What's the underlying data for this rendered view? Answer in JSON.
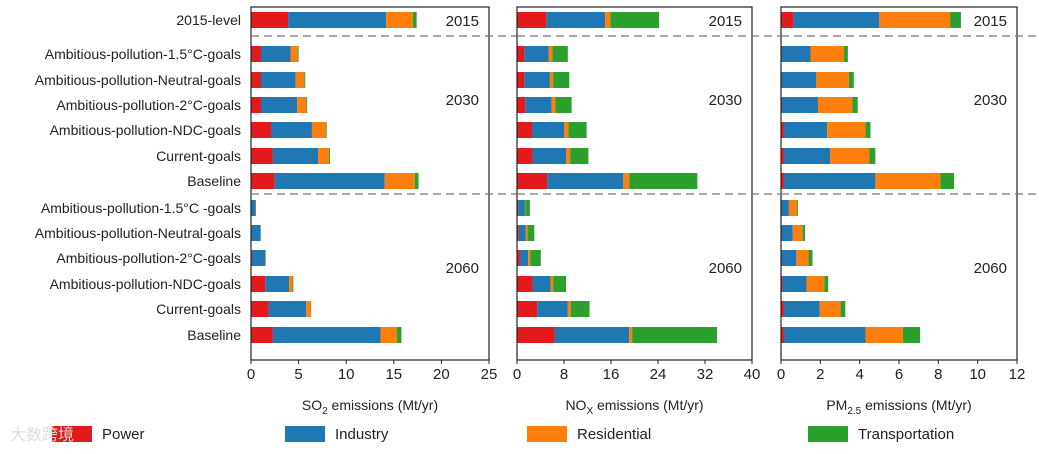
{
  "chart_data": [
    {
      "type": "bar",
      "orientation": "horizontal-stacked",
      "xlabel": {
        "main": "SO",
        "sub": "2",
        "rest": " emissions (Mt/yr)"
      },
      "xlim": [
        0,
        25
      ],
      "xticks": [
        "0",
        "5",
        "10",
        "15",
        "20",
        "25"
      ],
      "tickvals": [
        0,
        5,
        10,
        15,
        20,
        25
      ],
      "series": [
        {
          "name": "Power",
          "values": [
            3.9,
            1.05,
            1.05,
            1.05,
            2.1,
            2.3,
            2.5,
            0.05,
            0.05,
            0.1,
            1.5,
            1.85,
            2.3
          ]
        },
        {
          "name": "Industry",
          "values": [
            10.3,
            3.1,
            3.65,
            3.8,
            4.3,
            4.75,
            11.55,
            0.45,
            0.95,
            1.4,
            2.5,
            3.95,
            11.3
          ]
        },
        {
          "name": "Residential",
          "values": [
            2.8,
            0.75,
            0.9,
            0.95,
            1.45,
            1.15,
            3.15,
            0,
            0,
            0.05,
            0.35,
            0.5,
            1.7
          ]
        },
        {
          "name": "Transportation",
          "values": [
            0.4,
            0.1,
            0.1,
            0.1,
            0.1,
            0.1,
            0.4,
            0.02,
            0.02,
            0.02,
            0.1,
            0.02,
            0.5
          ]
        }
      ]
    },
    {
      "type": "bar",
      "orientation": "horizontal-stacked",
      "xlabel": {
        "main": "NO",
        "sub": "X",
        "rest": " emissions (Mt/yr)"
      },
      "xlim": [
        0,
        40
      ],
      "xticks": [
        "0",
        "8",
        "16",
        "24",
        "32",
        "40"
      ],
      "tickvals": [
        0,
        8,
        16,
        24,
        32,
        40
      ],
      "series": [
        {
          "name": "Power",
          "values": [
            5.0,
            1.25,
            1.25,
            1.4,
            2.55,
            2.65,
            5.15,
            0.2,
            0.3,
            0.5,
            2.65,
            3.45,
            6.4
          ]
        },
        {
          "name": "Industry",
          "values": [
            10.0,
            4.15,
            4.35,
            4.5,
            5.45,
            5.7,
            12.95,
            1.15,
            1.2,
            1.4,
            3.05,
            5.2,
            12.7
          ]
        },
        {
          "name": "Residential",
          "values": [
            0.9,
            0.65,
            0.55,
            0.65,
            0.75,
            0.7,
            1.0,
            0.1,
            0.3,
            0.35,
            0.45,
            0.5,
            0.5
          ]
        },
        {
          "name": "Transportation",
          "values": [
            8.3,
            2.6,
            2.75,
            2.75,
            3.1,
            3.1,
            11.6,
            0.75,
            1.15,
            1.8,
            2.2,
            3.2,
            14.45
          ]
        }
      ]
    },
    {
      "type": "bar",
      "orientation": "horizontal-stacked",
      "xlabel": {
        "main": "PM",
        "sub": "2.5",
        "rest": " emissions (Mt/yr)"
      },
      "xlim": [
        0,
        12
      ],
      "xticks": [
        "0",
        "2",
        "4",
        "6",
        "8",
        "10",
        "12"
      ],
      "tickvals": [
        0,
        2,
        4,
        6,
        8,
        10,
        12
      ],
      "series": [
        {
          "name": "Power",
          "values": [
            0.63,
            0,
            0,
            0.05,
            0.15,
            0.15,
            0.15,
            0,
            0,
            0,
            0.08,
            0.15,
            0.15
          ]
        },
        {
          "name": "Industry",
          "values": [
            4.37,
            1.5,
            1.78,
            1.83,
            2.2,
            2.35,
            4.65,
            0.4,
            0.6,
            0.78,
            1.22,
            1.82,
            4.15
          ]
        },
        {
          "name": "Residential",
          "values": [
            3.6,
            1.7,
            1.67,
            1.75,
            1.95,
            2.0,
            3.3,
            0.4,
            0.5,
            0.62,
            0.9,
            1.06,
            1.9
          ]
        },
        {
          "name": "Transportation",
          "values": [
            0.55,
            0.2,
            0.25,
            0.27,
            0.25,
            0.3,
            0.7,
            0.06,
            0.12,
            0.2,
            0.2,
            0.24,
            0.87
          ]
        }
      ]
    }
  ],
  "categories": [
    "2015-level",
    "Ambitious-pollution-1.5°C-goals",
    "Ambitious-pollution-Neutral-goals",
    "Ambitious-pollution-2°C-goals",
    "Ambitious-pollution-NDC-goals",
    "Current-goals",
    "Baseline",
    "Ambitious-pollution-1.5°C -goals",
    "Ambitious-pollution-Neutral-goals",
    "Ambitious-pollution-2°C-goals",
    "Ambitious-pollution-NDC-goals",
    "Current-goals",
    "Baseline"
  ],
  "year_labels": [
    "2015",
    "2030",
    "2060"
  ],
  "legend": [
    {
      "name": "Power",
      "color": "#e31a1c"
    },
    {
      "name": "Industry",
      "color": "#1f77b4"
    },
    {
      "name": "Residential",
      "color": "#ff7f0e"
    },
    {
      "name": "Transportation",
      "color": "#2ca02c"
    }
  ],
  "watermark": "大数跨境"
}
